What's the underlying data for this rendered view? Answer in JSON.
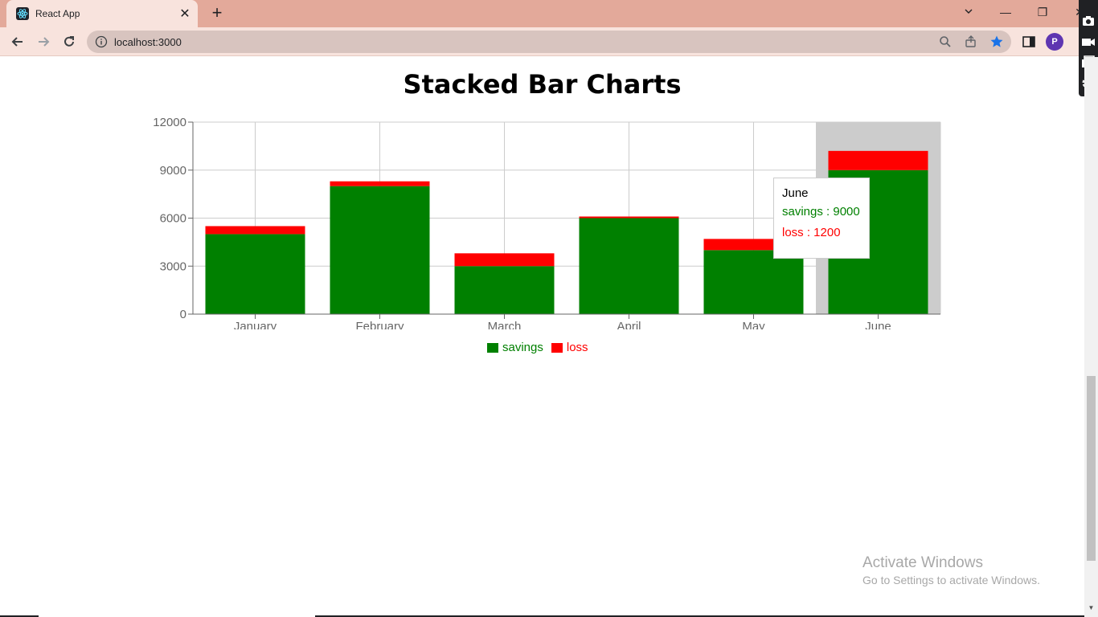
{
  "browser": {
    "tab_title": "React App",
    "url": "localhost:3000",
    "profile_initial": "P",
    "icons": {
      "favicon": "react-icon",
      "back": "arrow-left-icon",
      "forward": "arrow-right-icon",
      "reload": "reload-icon",
      "info": "info-icon",
      "zoom": "search-icon",
      "share": "share-icon",
      "bookmark": "star-icon",
      "sidepanel": "side-panel-icon"
    },
    "accent": "#e3a99a"
  },
  "page": {
    "title": "Stacked Bar Charts"
  },
  "chart_data": {
    "type": "bar",
    "stacked": true,
    "categories": [
      "January",
      "February",
      "March",
      "April",
      "May",
      "June"
    ],
    "series": [
      {
        "name": "savings",
        "color": "#008000",
        "values": [
          5000,
          8000,
          3000,
          6000,
          4000,
          9000
        ]
      },
      {
        "name": "loss",
        "color": "#ff0000",
        "values": [
          500,
          300,
          800,
          100,
          700,
          1200
        ]
      }
    ],
    "ylim": [
      0,
      12000
    ],
    "yticks": [
      "0",
      "3000",
      "6000",
      "9000",
      "12000"
    ],
    "grid": true,
    "legend": "bottom",
    "highlighted_category": "June"
  },
  "tooltip": {
    "label": "June",
    "rows": [
      {
        "text": "savings : 9000",
        "color": "#008000"
      },
      {
        "text": "loss : 1200",
        "color": "#ff0000"
      }
    ]
  },
  "watermark": {
    "title": "Activate Windows",
    "subtitle": "Go to Settings to activate Windows."
  }
}
